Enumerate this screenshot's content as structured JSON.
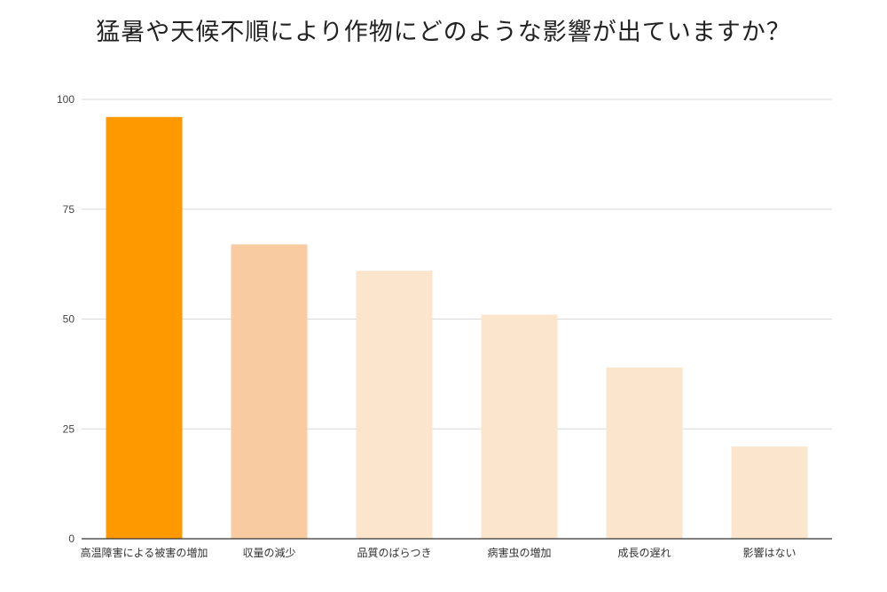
{
  "chart_data": {
    "type": "bar",
    "title": "猛暑や天候不順により作物にどのような影響が出ていますか？",
    "xlabel": "",
    "ylabel": "",
    "ylim": [
      0,
      100
    ],
    "yticks": [
      0,
      25,
      50,
      75,
      100
    ],
    "grid": true,
    "legend": "none",
    "categories": [
      "高温障害による被害の増加",
      "収量の減少",
      "品質のばらつき",
      "病害虫の増加",
      "成長の遅れ",
      "影響はない"
    ],
    "values": [
      96,
      67,
      61,
      51,
      39,
      21
    ],
    "colors": [
      "#FF9900",
      "#F8CBA0",
      "#FCE5CD",
      "#FCE5CD",
      "#FCE5CD",
      "#FCE5CD"
    ],
    "gridline_color": "#d9d9d9",
    "axis_color": "#333333"
  }
}
